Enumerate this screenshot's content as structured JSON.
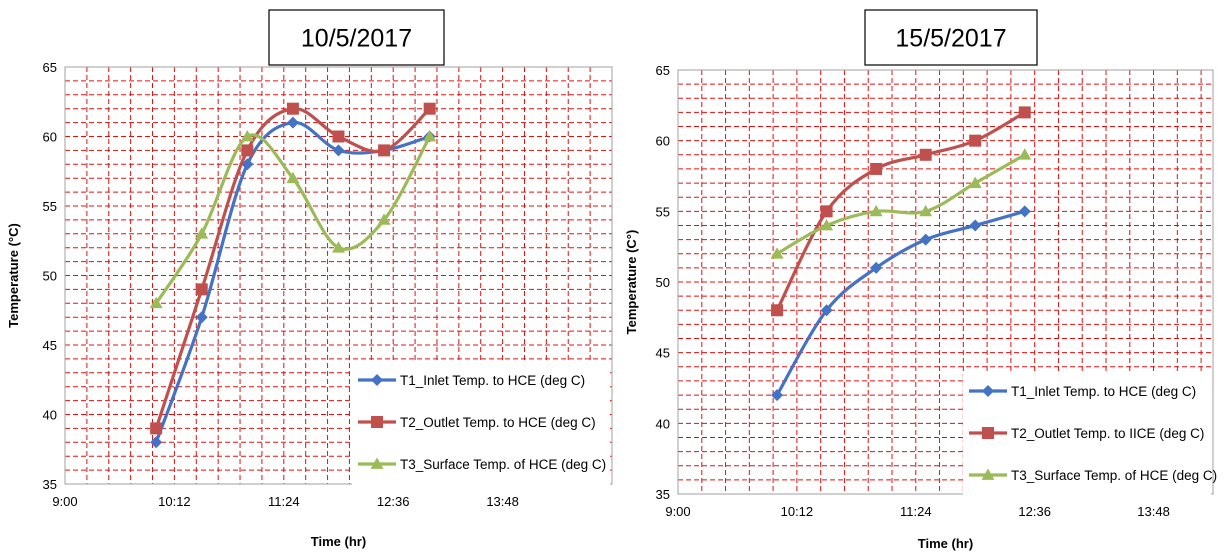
{
  "colors": {
    "grid": "#e01010",
    "plot_border": "#a0a0a0",
    "series": [
      "#4472c4",
      "#c0504d",
      "#9bbb59"
    ]
  },
  "chart_data": [
    {
      "type": "line",
      "title": "10/5/2017",
      "xlabel": "Time (hr)",
      "ylabel": "Temperature (°C)",
      "xlim": [
        "9:00",
        "15:00"
      ],
      "ylim": [
        35,
        65
      ],
      "xticks": [
        "9:00",
        "10:12",
        "11:24",
        "12:36",
        "13:48"
      ],
      "yticks": [
        35,
        40,
        45,
        50,
        55,
        60,
        65
      ],
      "grid": true,
      "legend_position": "bottom-right",
      "smooth": true,
      "x": [
        "10:00",
        "10:30",
        "11:00",
        "11:30",
        "12:00",
        "12:30",
        "13:00"
      ],
      "series": [
        {
          "name": "T1_Inlet Temp. to HCE (deg C)",
          "marker": "diamond",
          "values": [
            38,
            47,
            58,
            61,
            59,
            59,
            60
          ]
        },
        {
          "name": "T2_Outlet Temp. to HCE (deg C)",
          "marker": "square",
          "values": [
            39,
            49,
            59,
            62,
            60,
            59,
            62
          ]
        },
        {
          "name": "T3_Surface Temp. of HCE (deg C)",
          "marker": "triangle",
          "values": [
            48,
            53,
            60,
            57,
            52,
            54,
            60
          ]
        }
      ]
    },
    {
      "type": "line",
      "title": "15/5/2017",
      "xlabel": "Time (hr)",
      "ylabel": "Temperature (C°)",
      "xlim": [
        "9:00",
        "14:24"
      ],
      "ylim": [
        35,
        65
      ],
      "xticks": [
        "9:00",
        "10:12",
        "11:24",
        "12:36",
        "13:48"
      ],
      "yticks": [
        35,
        40,
        45,
        50,
        55,
        60,
        65
      ],
      "grid": true,
      "legend_position": "bottom-right",
      "smooth": true,
      "x": [
        "10:00",
        "10:30",
        "11:00",
        "11:30",
        "12:00",
        "12:30"
      ],
      "series": [
        {
          "name": "T1_Inlet Temp. to HCE (deg C)",
          "marker": "diamond",
          "values": [
            42,
            48,
            51,
            53,
            54,
            55
          ]
        },
        {
          "name": "T2_Outlet Temp. to IICE (deg C)",
          "marker": "square",
          "values": [
            48,
            55,
            58,
            59,
            60,
            62
          ]
        },
        {
          "name": "T3_Surface Temp. of HCE (deg C)",
          "marker": "triangle",
          "values": [
            52,
            54,
            55,
            55,
            57,
            59
          ]
        }
      ]
    }
  ]
}
